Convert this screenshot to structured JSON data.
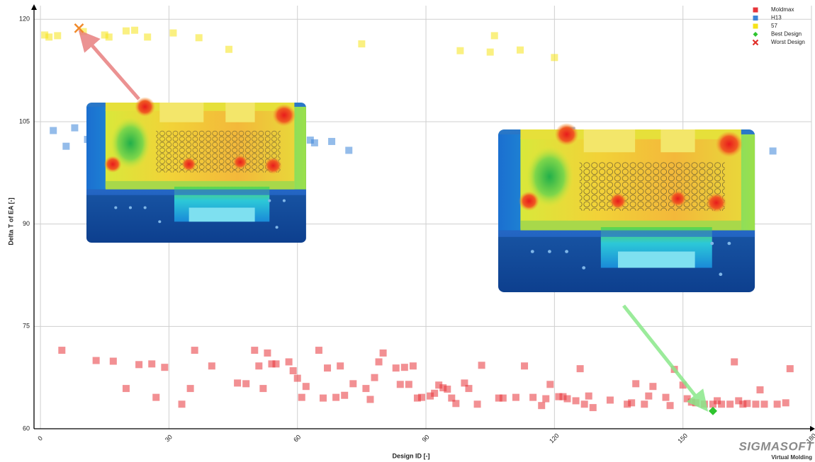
{
  "chart_data": {
    "type": "scatter",
    "x_label": "Design ID [-]",
    "y_label": "Delta T of EA [-]",
    "xlim": [
      -1.5,
      180
    ],
    "ylim": [
      60,
      122
    ],
    "xticks": [
      0,
      30,
      60,
      90,
      120,
      150,
      180
    ],
    "yticks": [
      60,
      75,
      90,
      105,
      120
    ],
    "grid": true,
    "legend": "top-right",
    "series": [
      {
        "name": "Moldmax",
        "color": "#e8343a",
        "marker": "square",
        "x": [
          5,
          13,
          17,
          20,
          23,
          26,
          27,
          29,
          33,
          35,
          36,
          40,
          46,
          48,
          50,
          51,
          52,
          53,
          54,
          55,
          58,
          59,
          60,
          61,
          62,
          65,
          67,
          66,
          69,
          70,
          71,
          73,
          76,
          77,
          78,
          79,
          80,
          83,
          84,
          85,
          86,
          87,
          88,
          89,
          91,
          92,
          93,
          94,
          95,
          96,
          97,
          99,
          100,
          102,
          103,
          107,
          108,
          111,
          113,
          115,
          117,
          118,
          119,
          121,
          122,
          123,
          125,
          126,
          127,
          128,
          129,
          133,
          137,
          138,
          139,
          141,
          142,
          143,
          146,
          147,
          148,
          150,
          151,
          152,
          153,
          155,
          157,
          158,
          159,
          161,
          162,
          163,
          164,
          165,
          167,
          168,
          169,
          172,
          174,
          175
        ],
        "values": [
          71.5,
          70.0,
          69.9,
          65.9,
          69.4,
          69.5,
          64.6,
          69.0,
          63.6,
          65.9,
          71.5,
          69.2,
          66.7,
          66.6,
          71.5,
          69.2,
          65.9,
          71.1,
          69.5,
          69.5,
          69.8,
          68.5,
          67.4,
          64.6,
          66.2,
          71.5,
          68.9,
          64.5,
          64.6,
          69.2,
          64.9,
          66.6,
          65.9,
          64.3,
          67.5,
          69.8,
          71.1,
          68.9,
          66.5,
          69.0,
          66.5,
          69.2,
          64.5,
          64.6,
          64.8,
          65.2,
          66.4,
          66.0,
          65.8,
          64.5,
          63.7,
          66.7,
          65.9,
          63.6,
          69.3,
          64.5,
          64.5,
          64.6,
          69.2,
          64.6,
          63.4,
          64.4,
          66.5,
          64.7,
          64.7,
          64.4,
          64.1,
          68.8,
          63.6,
          64.8,
          63.1,
          64.2,
          63.6,
          63.8,
          66.6,
          63.6,
          64.8,
          66.2,
          64.6,
          63.4,
          68.7,
          66.4,
          64.4,
          63.9,
          63.8,
          63.6,
          63.6,
          64.1,
          63.6,
          63.6,
          69.8,
          64.1,
          63.6,
          63.7,
          63.6,
          65.7,
          63.6,
          63.6,
          63.8,
          68.8
        ]
      },
      {
        "name": "H13",
        "color": "#3d85d8",
        "marker": "square",
        "x": [
          3,
          6,
          8,
          11,
          63,
          64,
          68,
          72,
          124,
          171
        ],
        "values": [
          103.7,
          101.4,
          104.1,
          102.4,
          102.3,
          101.9,
          102.1,
          100.8,
          103.7,
          100.7
        ]
      },
      {
        "name": "57",
        "color": "#f5e31a",
        "marker": "square",
        "x": [
          1,
          2,
          4,
          10,
          15,
          16,
          20,
          22,
          25,
          31,
          37,
          44,
          75,
          98,
          105,
          106,
          112,
          120
        ],
        "values": [
          117.7,
          117.4,
          117.6,
          118.2,
          117.7,
          117.4,
          118.3,
          118.4,
          117.4,
          118.0,
          117.3,
          115.6,
          116.4,
          115.4,
          115.2,
          117.6,
          115.5,
          114.4
        ]
      },
      {
        "name": "Best Design",
        "color": "#2ec42e",
        "marker": "diamond",
        "x": [
          157
        ],
        "values": [
          62.6
        ]
      },
      {
        "name": "Worst Design",
        "color": "#e0302a",
        "marker": "x",
        "x": [
          9
        ],
        "values": [
          118.7
        ]
      }
    ]
  },
  "branding": {
    "name": "SIGMASOFT",
    "tagline": "Virtual Molding"
  }
}
